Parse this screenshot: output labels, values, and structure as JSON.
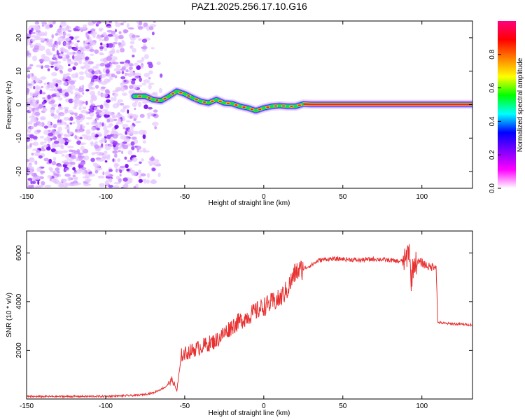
{
  "title": "PAZ1.2025.256.17.10.G16",
  "chart_data": [
    {
      "type": "heatmap",
      "title": "PAZ1.2025.256.17.10.G16",
      "xlabel": "Height of straight line (km)",
      "ylabel": "Frequency (Hz)",
      "xlim": [
        -150,
        132
      ],
      "ylim": [
        -25,
        25
      ],
      "x_ticks": [
        -150,
        -100,
        -50,
        0,
        50,
        100
      ],
      "y_ticks": [
        -20,
        -10,
        0,
        10,
        20
      ],
      "colorbar": {
        "label": "Normalized spectral amplitude",
        "range": [
          0,
          1
        ],
        "ticks": [
          0.0,
          0.2,
          0.4,
          0.6,
          0.8
        ],
        "colors": [
          "#ffffff",
          "#ff00ff",
          "#8000ff",
          "#0000ff",
          "#00ffff",
          "#00ff00",
          "#ffff00",
          "#ff8000",
          "#ff0000",
          "#ff0080"
        ]
      },
      "noise_region_x": [
        -150,
        -72
      ],
      "ridge": {
        "x": [
          -82,
          -75,
          -70,
          -65,
          -60,
          -55,
          -50,
          -45,
          -40,
          -35,
          -30,
          -25,
          -20,
          -15,
          -10,
          -5,
          0,
          5,
          10,
          15,
          20,
          25,
          30,
          60,
          90,
          100,
          110,
          132
        ],
        "y": [
          2.5,
          2.5,
          1.5,
          1.2,
          2.5,
          4.0,
          3.2,
          2.0,
          1.0,
          0.5,
          1.5,
          0.5,
          0.3,
          -0.5,
          -1.0,
          -1.8,
          -1.0,
          -0.5,
          -0.3,
          -0.5,
          -0.5,
          0.2,
          0.1,
          0.1,
          0.1,
          0.1,
          0.1,
          0.1
        ]
      },
      "grid": false
    },
    {
      "type": "line",
      "xlabel": "Height of straight line (km)",
      "ylabel": "SNR (10 * v/v)",
      "xlim": [
        -150,
        132
      ],
      "ylim": [
        0,
        6900
      ],
      "x_ticks": [
        -150,
        -100,
        -50,
        0,
        50,
        100
      ],
      "y_ticks": [
        2000,
        4000,
        6000
      ],
      "color": "#e83030",
      "x": [
        -150,
        -100,
        -80,
        -70,
        -62,
        -58,
        -55,
        -52,
        -45,
        -30,
        -20,
        -10,
        0,
        10,
        15,
        20,
        30,
        35,
        40,
        50,
        60,
        70,
        80,
        85,
        90,
        92,
        93,
        95,
        100,
        105,
        109,
        110,
        115,
        132
      ],
      "y": [
        100,
        110,
        150,
        250,
        500,
        800,
        350,
        1800,
        2000,
        2400,
        3000,
        3400,
        3800,
        4100,
        4500,
        5200,
        5500,
        5700,
        5750,
        5750,
        5700,
        5750,
        5700,
        5650,
        5700,
        6300,
        4800,
        5600,
        5600,
        5400,
        5500,
        3150,
        3100,
        3050
      ]
    }
  ]
}
